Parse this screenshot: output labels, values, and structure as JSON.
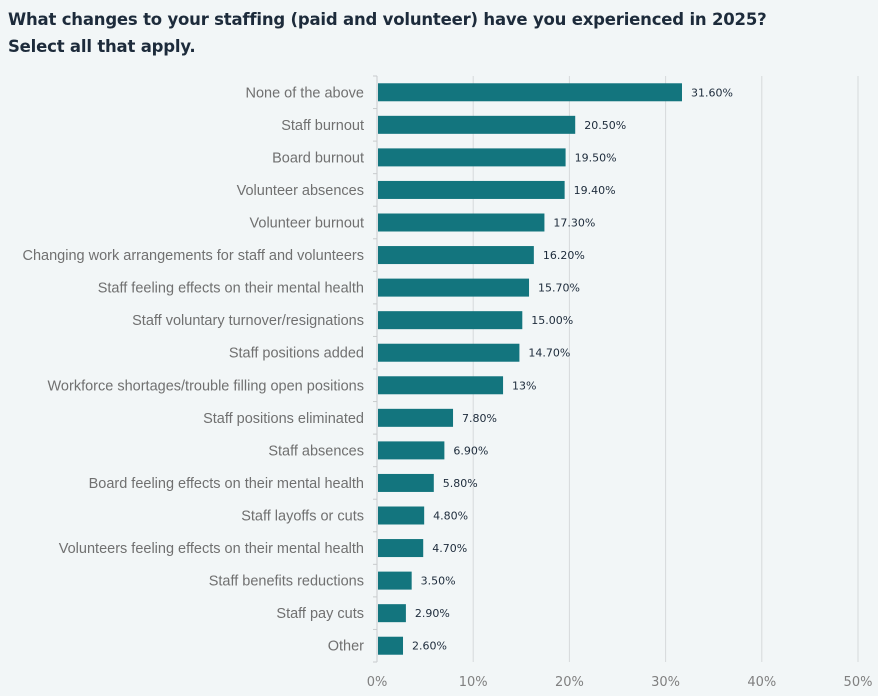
{
  "chart_data": {
    "type": "bar",
    "orientation": "horizontal",
    "title": "What changes to your staffing (paid and volunteer) have you experienced in 2025?  Select all that apply.",
    "categories": [
      "None of the above",
      "Staff burnout",
      "Board burnout",
      "Volunteer absences",
      "Volunteer burnout",
      "Changing work arrangements for staff and volunteers",
      "Staff feeling effects on their mental health",
      "Staff voluntary turnover/resignations",
      "Staff positions added",
      "Workforce shortages/trouble filling open positions",
      "Staff positions eliminated",
      "Staff absences",
      "Board feeling effects on their mental health",
      "Staff layoffs or cuts",
      "Volunteers feeling effects on their mental health",
      "Staff benefits reductions",
      "Staff pay cuts",
      "Other"
    ],
    "values": [
      31.6,
      20.5,
      19.5,
      19.4,
      17.3,
      16.2,
      15.7,
      15.0,
      14.7,
      13,
      7.8,
      6.9,
      5.8,
      4.8,
      4.7,
      3.5,
      2.9,
      2.6
    ],
    "data_labels": [
      "31.60%",
      "20.50%",
      "19.50%",
      "19.40%",
      "17.30%",
      "16.20%",
      "15.70%",
      "15.00%",
      "14.70%",
      "13%",
      "7.80%",
      "6.90%",
      "5.80%",
      "4.80%",
      "4.70%",
      "3.50%",
      "2.90%",
      "2.60%"
    ],
    "xlim": [
      0,
      50
    ],
    "x_ticks": [
      "0%",
      "10%",
      "20%",
      "30%",
      "40%",
      "50%"
    ],
    "grid": true,
    "bar_color": "#13757e",
    "xlabel": "",
    "ylabel": ""
  }
}
